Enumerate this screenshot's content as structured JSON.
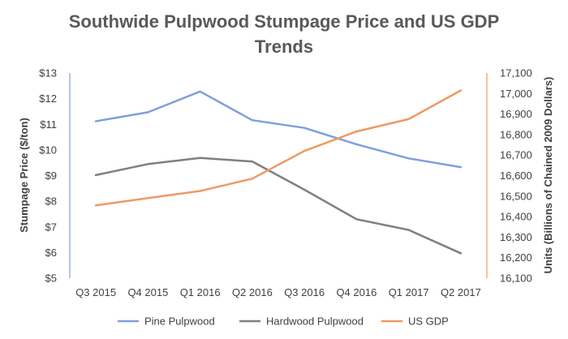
{
  "chart_data": {
    "type": "line",
    "title_lines": [
      "Southwide Pulpwood Stumpage Price and US GDP",
      "Trends"
    ],
    "categories": [
      "Q3 2015",
      "Q4 2015",
      "Q1 2016",
      "Q2 2016",
      "Q3 2016",
      "Q4 2016",
      "Q1 2017",
      "Q2 2017"
    ],
    "ylabel_left": "Stumpage Price ($/ton)",
    "ylabel_right": "Units (Billions of Chained 2009 Dollars)",
    "ylim_left": [
      5,
      13
    ],
    "ylim_right": [
      16100,
      17100
    ],
    "yticks_left": [
      "$5",
      "$6",
      "$7",
      "$8",
      "$9",
      "$10",
      "$11",
      "$12",
      "$13"
    ],
    "yticks_right": [
      "16,100",
      "16,200",
      "16,300",
      "16,400",
      "16,500",
      "16,600",
      "16,700",
      "16,800",
      "16,900",
      "17,000",
      "17,100"
    ],
    "grid": false,
    "legend_position": "bottom",
    "series": [
      {
        "name": "Pine Pulpwood",
        "axis": "left",
        "color": "#7f9fdc",
        "values": [
          11.12,
          11.47,
          12.28,
          11.16,
          10.86,
          10.22,
          9.67,
          9.33
        ]
      },
      {
        "name": "Hardwood Pulpwood",
        "axis": "left",
        "color": "#7f7f7f",
        "values": [
          9.02,
          9.45,
          9.69,
          9.55,
          8.45,
          7.3,
          6.88,
          5.97
        ]
      },
      {
        "name": "US GDP",
        "axis": "right",
        "color": "#ed9a64",
        "values": [
          16455,
          16490,
          16525,
          16585,
          16720,
          16815,
          16875,
          17015
        ]
      }
    ]
  }
}
